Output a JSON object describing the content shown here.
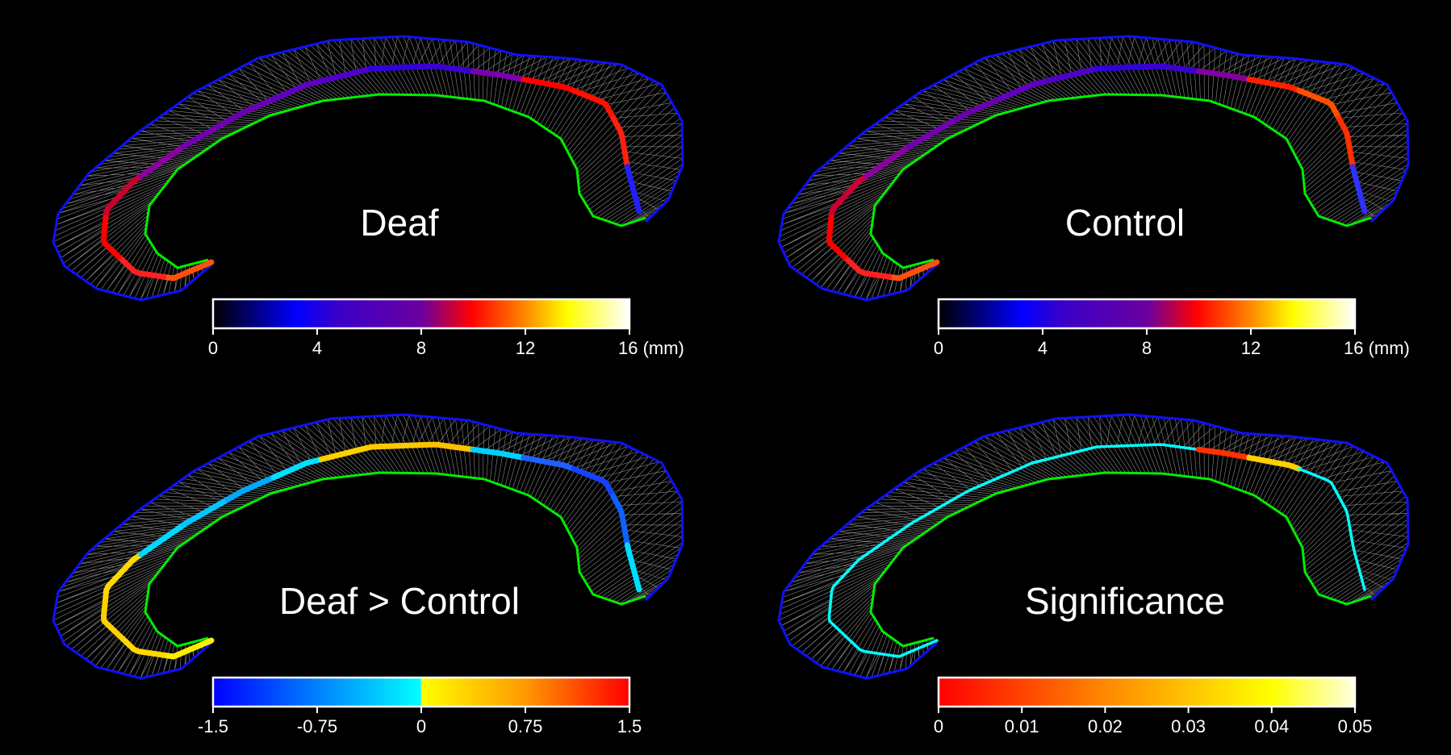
{
  "panels": [
    {
      "id": "deaf",
      "title": "Deaf",
      "colorbar": {
        "stops": [
          [
            "0",
            "#000000"
          ],
          [
            "0.20",
            "#0000ff"
          ],
          [
            "0.30",
            "#3a00c8"
          ],
          [
            "0.50",
            "#6a00a0"
          ],
          [
            "0.62",
            "#ff0000"
          ],
          [
            "0.75",
            "#ff8800"
          ],
          [
            "0.85",
            "#ffff00"
          ],
          [
            "1",
            "#ffffff"
          ]
        ],
        "ticks": [
          "0",
          "4",
          "8",
          "12",
          "16 (mm)"
        ]
      }
    },
    {
      "id": "control",
      "title": "Control",
      "colorbar": {
        "stops": [
          [
            "0",
            "#000000"
          ],
          [
            "0.20",
            "#0000ff"
          ],
          [
            "0.30",
            "#3a00c8"
          ],
          [
            "0.50",
            "#6a00a0"
          ],
          [
            "0.62",
            "#ff0000"
          ],
          [
            "0.75",
            "#ff8800"
          ],
          [
            "0.85",
            "#ffff00"
          ],
          [
            "1",
            "#ffffff"
          ]
        ],
        "ticks": [
          "0",
          "4",
          "8",
          "12",
          "16 (mm)"
        ]
      }
    },
    {
      "id": "deaf-gt-control",
      "title": "Deaf > Control",
      "colorbar": {
        "stops": [
          [
            "0",
            "#0000ff"
          ],
          [
            "0.25",
            "#0080ff"
          ],
          [
            "0.499",
            "#00ffff"
          ],
          [
            "0.5",
            "#ffff00"
          ],
          [
            "0.75",
            "#ff9900"
          ],
          [
            "1",
            "#ff0000"
          ]
        ],
        "ticks": [
          "-1.5",
          "-0.75",
          "0",
          "0.75",
          "1.5"
        ]
      }
    },
    {
      "id": "significance",
      "title": "Significance",
      "colorbar": {
        "stops": [
          [
            "0",
            "#ff0000"
          ],
          [
            "0.4",
            "#ff8800"
          ],
          [
            "0.8",
            "#ffff00"
          ],
          [
            "1",
            "#ffffe0"
          ]
        ],
        "ticks": [
          "0",
          "0.01",
          "0.02",
          "0.03",
          "0.04",
          "0.05"
        ]
      }
    }
  ],
  "colors": {
    "outer_contour": "#1010ff",
    "inner_contour": "#00ee00",
    "spokes": "#bbbbbb",
    "background": "#000000"
  },
  "medial_colors": {
    "deaf": [
      "#ff5010",
      "#ff2020",
      "#ff0000",
      "#cc0030",
      "#8a00a0",
      "#7000b0",
      "#6a00b0",
      "#6000c0",
      "#5000c8",
      "#3000e0",
      "#3a00d0",
      "#7a00b0",
      "#ff0000",
      "#ff1000",
      "#ff2010",
      "#2020ff"
    ],
    "control": [
      "#ff5010",
      "#ff2020",
      "#ff0000",
      "#cc0030",
      "#8a00a0",
      "#7000b0",
      "#6a00b0",
      "#6000c0",
      "#5000c8",
      "#3000e0",
      "#3a00d0",
      "#8000a0",
      "#ff2000",
      "#ff5000",
      "#ff3000",
      "#3030ff"
    ],
    "deaf-gt-control": [
      "#ffee00",
      "#ffd800",
      "#ffd000",
      "#ffd800",
      "#00d8ff",
      "#00c8ff",
      "#00a8ff",
      "#00e0ff",
      "#ffd000",
      "#ffc800",
      "#ffc000",
      "#00d0ff",
      "#2060ff",
      "#1840ff",
      "#1060ff",
      "#00ddff"
    ],
    "significance": [
      "#00ffff",
      "#00ffff",
      "#00ffff",
      "#00ffff",
      "#00ffff",
      "#00ffff",
      "#00ffff",
      "#00ffff",
      "#00ffff",
      "#00ffff",
      "#00ffff",
      "#ff3000",
      "#ffd000",
      "#00ffff",
      "#00ffff",
      "#00ffff"
    ]
  }
}
